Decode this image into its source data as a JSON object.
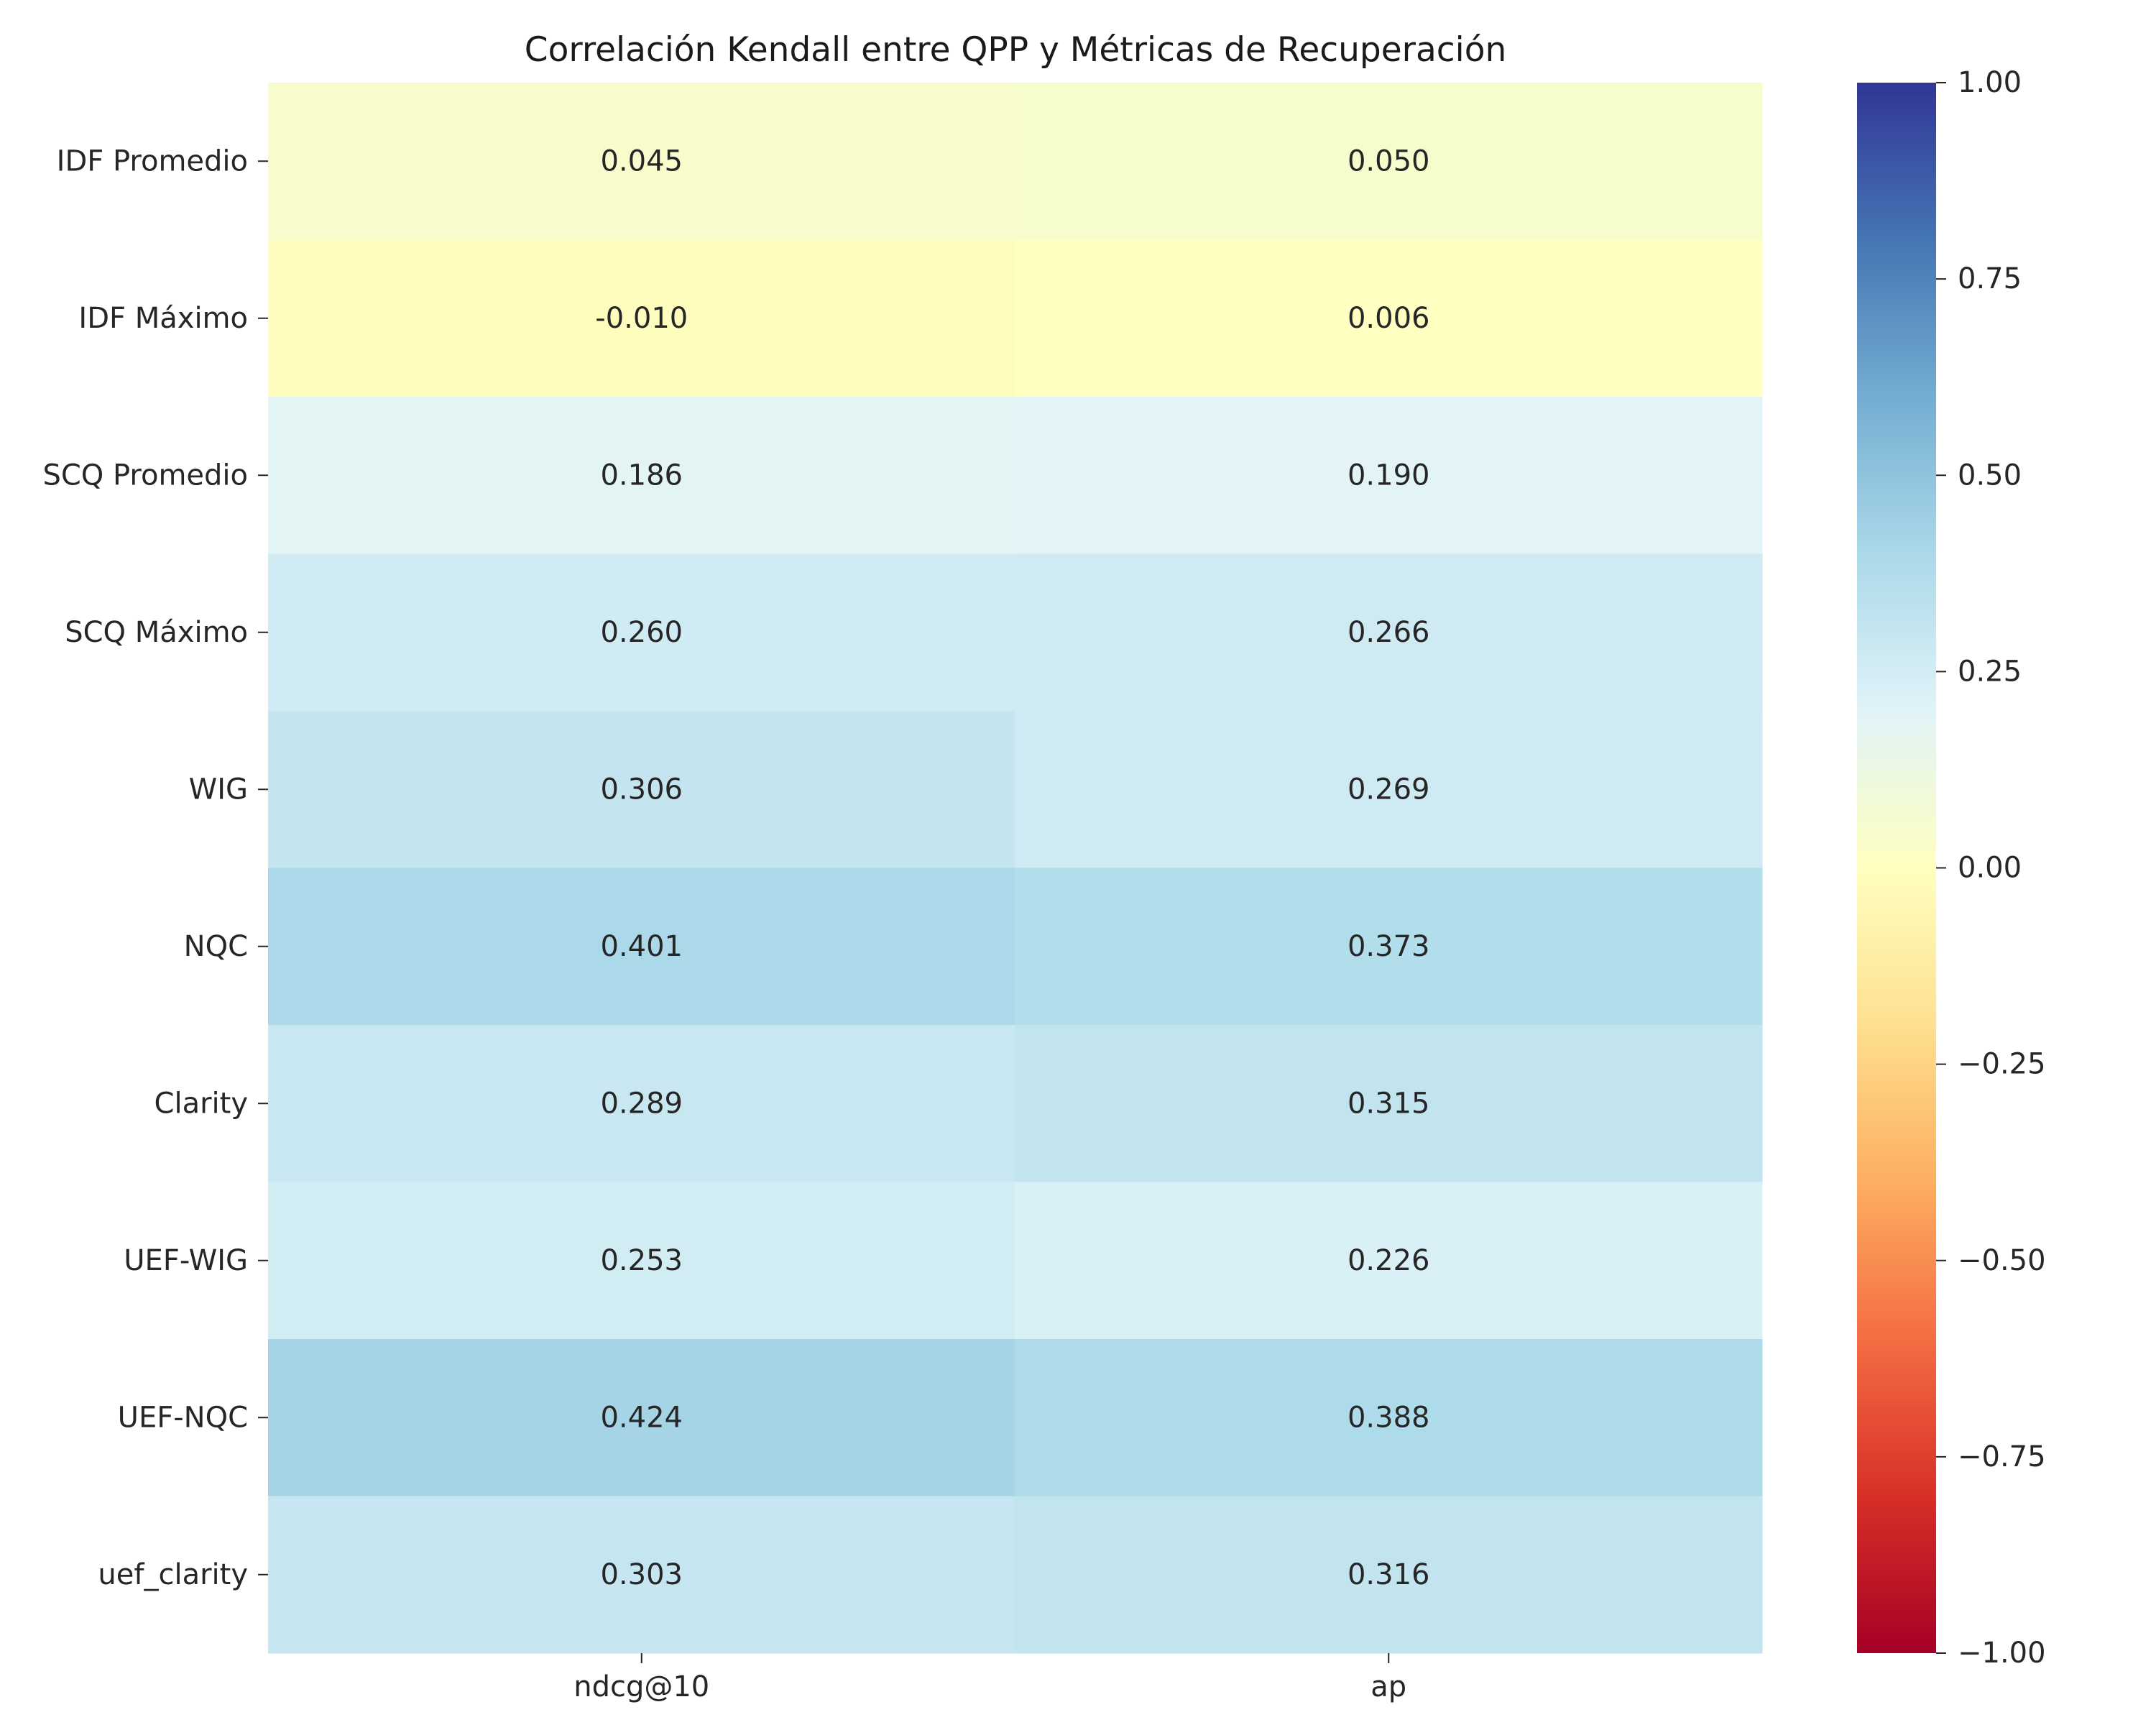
{
  "chart_data": {
    "type": "heatmap",
    "title": "Correlación Kendall entre QPP y Métricas de Recuperación",
    "xlabel": "",
    "ylabel": "",
    "columns": [
      "ndcg@10",
      "ap"
    ],
    "rows": [
      "IDF Promedio",
      "IDF Máximo",
      "SCQ Promedio",
      "SCQ Máximo",
      "WIG",
      "NQC",
      "Clarity",
      "UEF-WIG",
      "UEF-NQC",
      "uef_clarity"
    ],
    "values": [
      [
        0.045,
        0.05
      ],
      [
        -0.01,
        0.006
      ],
      [
        0.186,
        0.19
      ],
      [
        0.26,
        0.266
      ],
      [
        0.306,
        0.269
      ],
      [
        0.401,
        0.373
      ],
      [
        0.289,
        0.315
      ],
      [
        0.253,
        0.226
      ],
      [
        0.424,
        0.388
      ],
      [
        0.303,
        0.316
      ]
    ],
    "value_labels": [
      [
        "0.045",
        "0.050"
      ],
      [
        "-0.010",
        "0.006"
      ],
      [
        "0.186",
        "0.190"
      ],
      [
        "0.260",
        "0.266"
      ],
      [
        "0.306",
        "0.269"
      ],
      [
        "0.401",
        "0.373"
      ],
      [
        "0.289",
        "0.315"
      ],
      [
        "0.253",
        "0.226"
      ],
      [
        "0.424",
        "0.388"
      ],
      [
        "0.303",
        "0.316"
      ]
    ],
    "colormap": "RdYlBu",
    "vmin": -1.0,
    "vmax": 1.0,
    "colorbar_ticks": [
      1.0,
      0.75,
      0.5,
      0.25,
      0.0,
      -0.25,
      -0.5,
      -0.75,
      -1.0
    ],
    "colorbar_tick_labels": [
      "1.00",
      "0.75",
      "0.50",
      "0.25",
      "0.00",
      "−0.25",
      "−0.50",
      "−0.75",
      "−1.00"
    ],
    "colormap_stops": [
      "#a50026",
      "#d73027",
      "#f46d43",
      "#fdae61",
      "#fee090",
      "#ffffbf",
      "#e0f3f8",
      "#abd9e9",
      "#74add1",
      "#4575b4",
      "#313695"
    ]
  }
}
